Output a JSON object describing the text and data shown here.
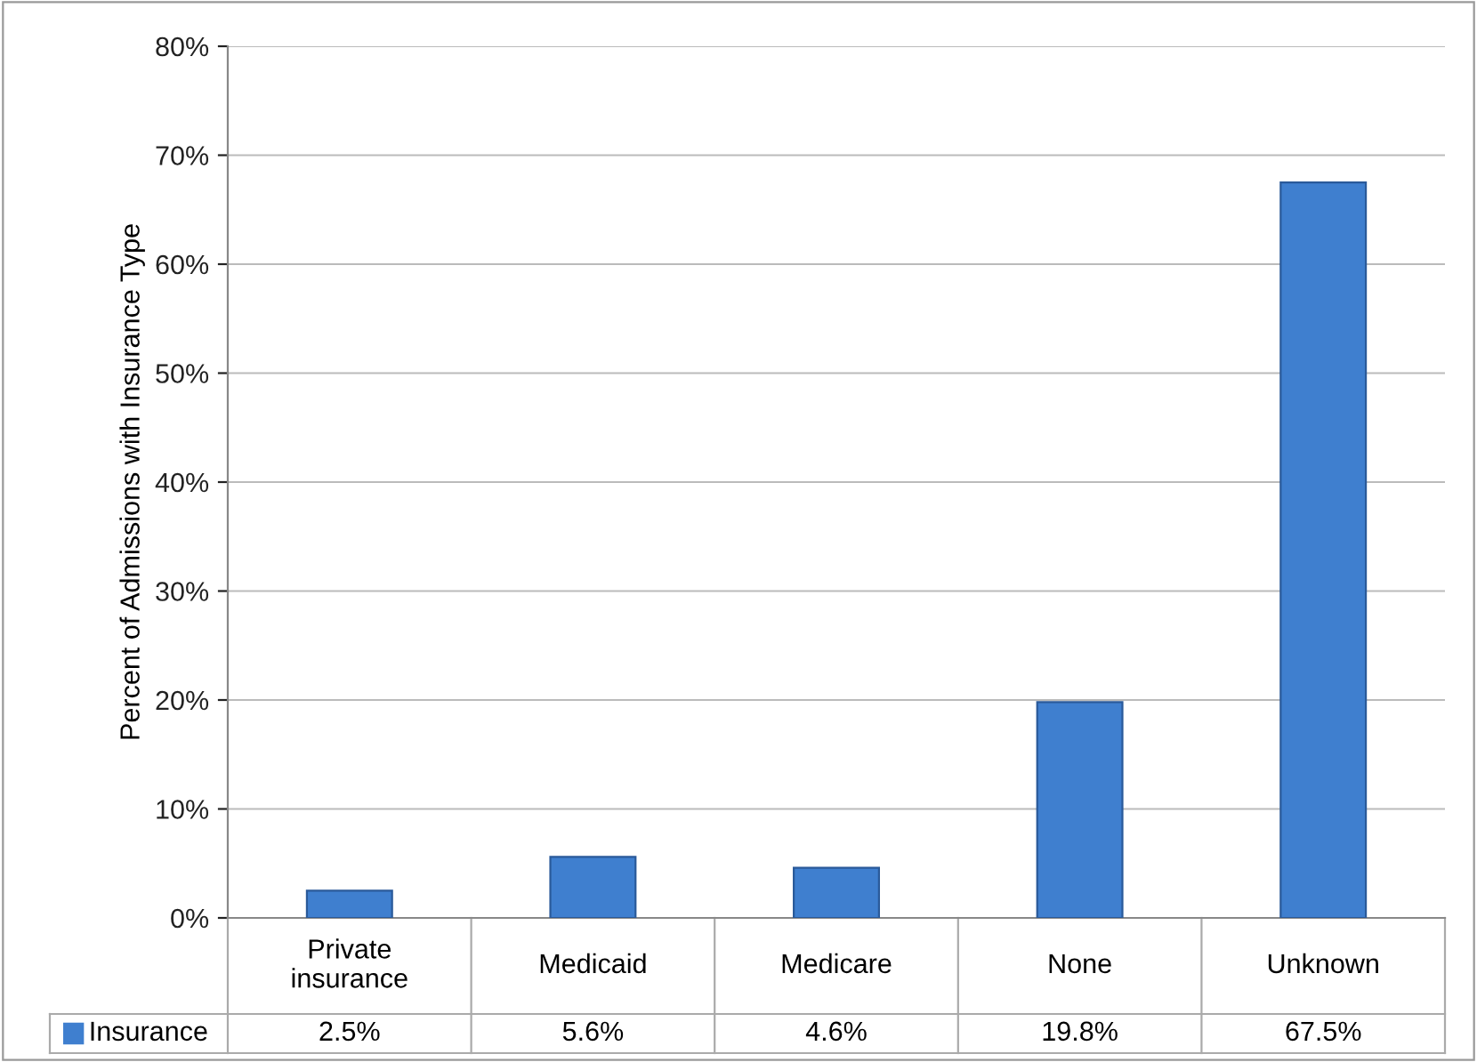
{
  "chart_data": {
    "type": "bar",
    "ylabel": "Percent of Admissions with Insurance Type",
    "categories": [
      "Private insurance",
      "Medicaid",
      "Medicare",
      "None",
      "Unknown"
    ],
    "series": [
      {
        "name": "Insurance",
        "color": "#3f7fcf",
        "values": [
          2.5,
          5.6,
          4.6,
          19.8,
          67.5
        ],
        "value_labels": [
          "2.5%",
          "5.6%",
          "4.6%",
          "19.8%",
          "67.5%"
        ]
      }
    ],
    "ylim": [
      0,
      80
    ],
    "yticks": [
      {
        "value": 0,
        "label": "0%"
      },
      {
        "value": 10,
        "label": "10%"
      },
      {
        "value": 20,
        "label": "20%"
      },
      {
        "value": 30,
        "label": "30%"
      },
      {
        "value": 40,
        "label": "40%"
      },
      {
        "value": 50,
        "label": "50%"
      },
      {
        "value": 60,
        "label": "60%"
      },
      {
        "value": 70,
        "label": "70%"
      },
      {
        "value": 80,
        "label": "80%"
      }
    ],
    "grid": "y",
    "legend": "bottom"
  }
}
